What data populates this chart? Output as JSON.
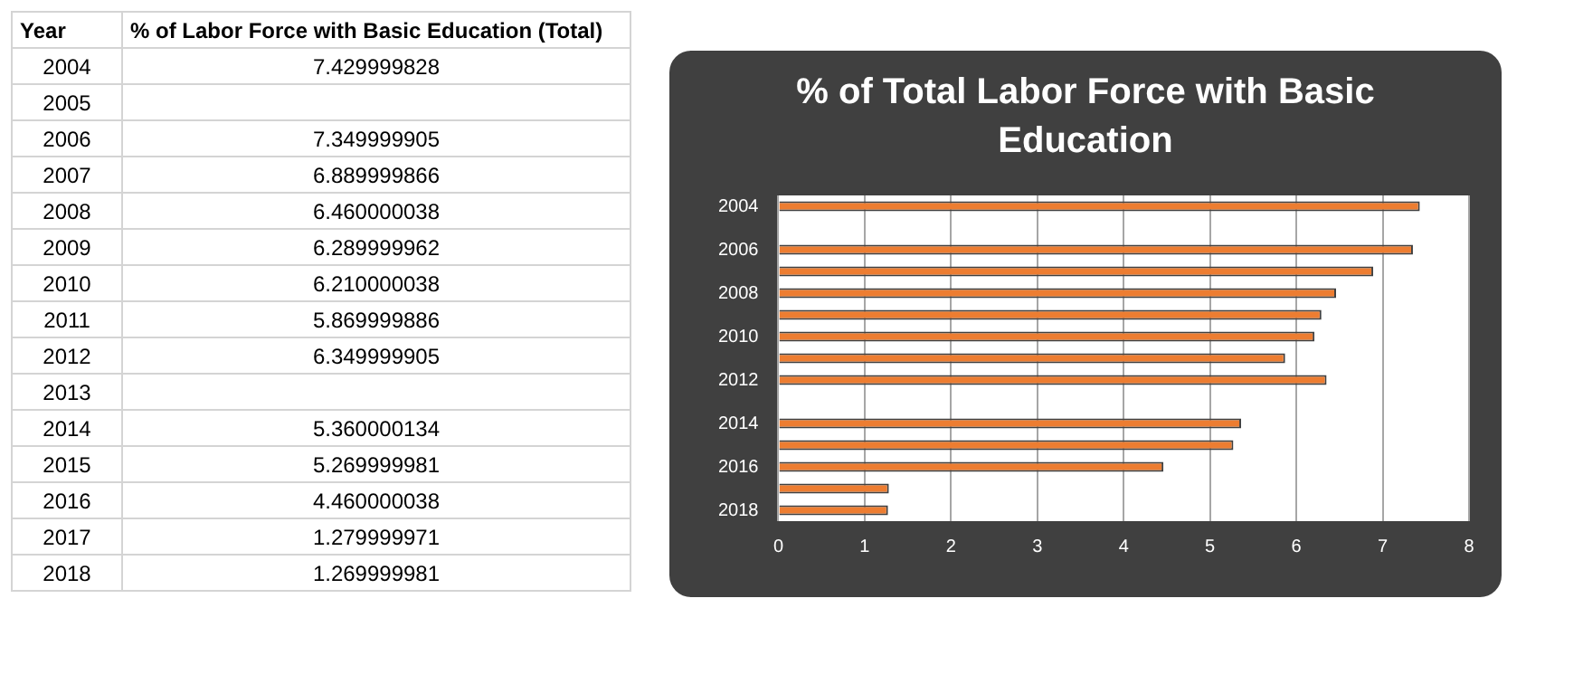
{
  "chart_data": {
    "type": "bar",
    "orientation": "horizontal",
    "title": "% of Total Labor Force with Basic Education",
    "categories": [
      "2004",
      null,
      "2006",
      null,
      "2008",
      null,
      "2010",
      null,
      "2012",
      null,
      "2014",
      null,
      "2016",
      null,
      "2018"
    ],
    "values": [
      7.43,
      null,
      7.35,
      6.89,
      6.46,
      6.29,
      6.21,
      5.87,
      6.35,
      null,
      5.36,
      5.27,
      4.46,
      1.28,
      1.27
    ],
    "color": "#ed7d31",
    "xlim": [
      0,
      8
    ],
    "xticks": [
      0,
      1,
      2,
      3,
      4,
      5,
      6,
      7,
      8
    ],
    "grid": "x",
    "legend": false,
    "annotations": [
      "Year",
      "% of Labor Force with Basic Education (Total)",
      "2004",
      "2005",
      "2006",
      "2007",
      "2008",
      "2009",
      "2010",
      "2011",
      "2012",
      "2013",
      "2014",
      "2015",
      "2016",
      "2017",
      "2018",
      "7.429999828",
      "7.349999905",
      "6.889999866",
      "6.460000038",
      "6.289999962",
      "6.210000038",
      "5.869999886",
      "6.349999905",
      "5.360000134",
      "5.269999981",
      "4.460000038",
      "1.279999971",
      "1.269999981"
    ]
  }
}
